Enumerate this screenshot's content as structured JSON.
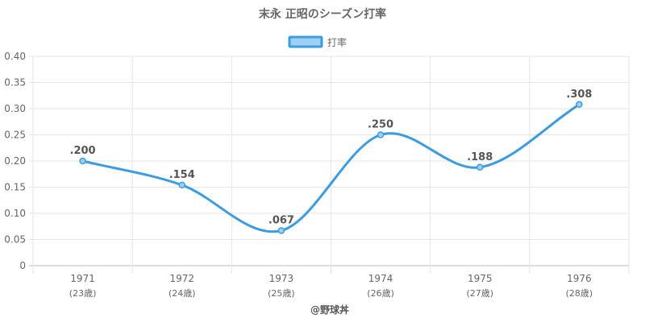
{
  "chart_data": {
    "type": "line",
    "title": "末永 正昭のシーズン打率",
    "legend": {
      "label": "打率",
      "position": "top"
    },
    "categories": [
      "1971",
      "1972",
      "1973",
      "1974",
      "1975",
      "1976"
    ],
    "sub_categories": [
      "(23歳)",
      "(24歳)",
      "(25歳)",
      "(26歳)",
      "(27歳)",
      "(28歳)"
    ],
    "series": [
      {
        "name": "打率",
        "values": [
          0.2,
          0.154,
          0.067,
          0.25,
          0.188,
          0.308
        ],
        "labels": [
          ".200",
          ".154",
          ".067",
          ".250",
          ".188",
          ".308"
        ],
        "color": "#3b9de0",
        "fill": "#9fd0f2"
      }
    ],
    "ylim": [
      0,
      0.4
    ],
    "yticks": [
      0,
      0.05,
      0.1,
      0.15,
      0.2,
      0.25,
      0.3,
      0.35,
      0.4
    ],
    "ytick_labels": [
      "0",
      "0.05",
      "0.10",
      "0.15",
      "0.20",
      "0.25",
      "0.30",
      "0.35",
      "0.40"
    ],
    "grid": true
  },
  "credit": "@野球丼"
}
